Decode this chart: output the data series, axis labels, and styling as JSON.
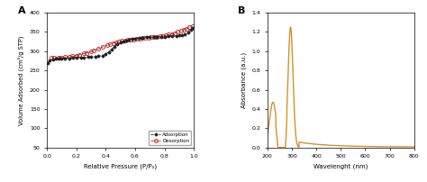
{
  "panel_A": {
    "label": "A",
    "xlabel": "Relative Pressure (P/P₀)",
    "ylabel": "Volume Adsorbed (cm³/g STP)",
    "xlim": [
      0.0,
      1.0
    ],
    "ylim": [
      50,
      400
    ],
    "yticks": [
      50,
      100,
      150,
      200,
      250,
      300,
      350,
      400
    ],
    "xticks": [
      0.0,
      0.2,
      0.4,
      0.6,
      0.8,
      1.0
    ],
    "adsorption_color": "#222222",
    "desorption_color": "#bb2222",
    "legend_labels": [
      "Adsorption",
      "Desorption"
    ]
  },
  "panel_B": {
    "label": "B",
    "xlabel": "Wavelenght (nm)",
    "ylabel": "Absorbance (a.u.)",
    "xlim": [
      200,
      800
    ],
    "ylim": [
      0.0,
      1.4
    ],
    "yticks": [
      0.0,
      0.2,
      0.4,
      0.6,
      0.8,
      1.0,
      1.2,
      1.4
    ],
    "xticks": [
      200,
      300,
      400,
      500,
      600,
      700,
      800
    ],
    "line_color": "#d4922a"
  }
}
